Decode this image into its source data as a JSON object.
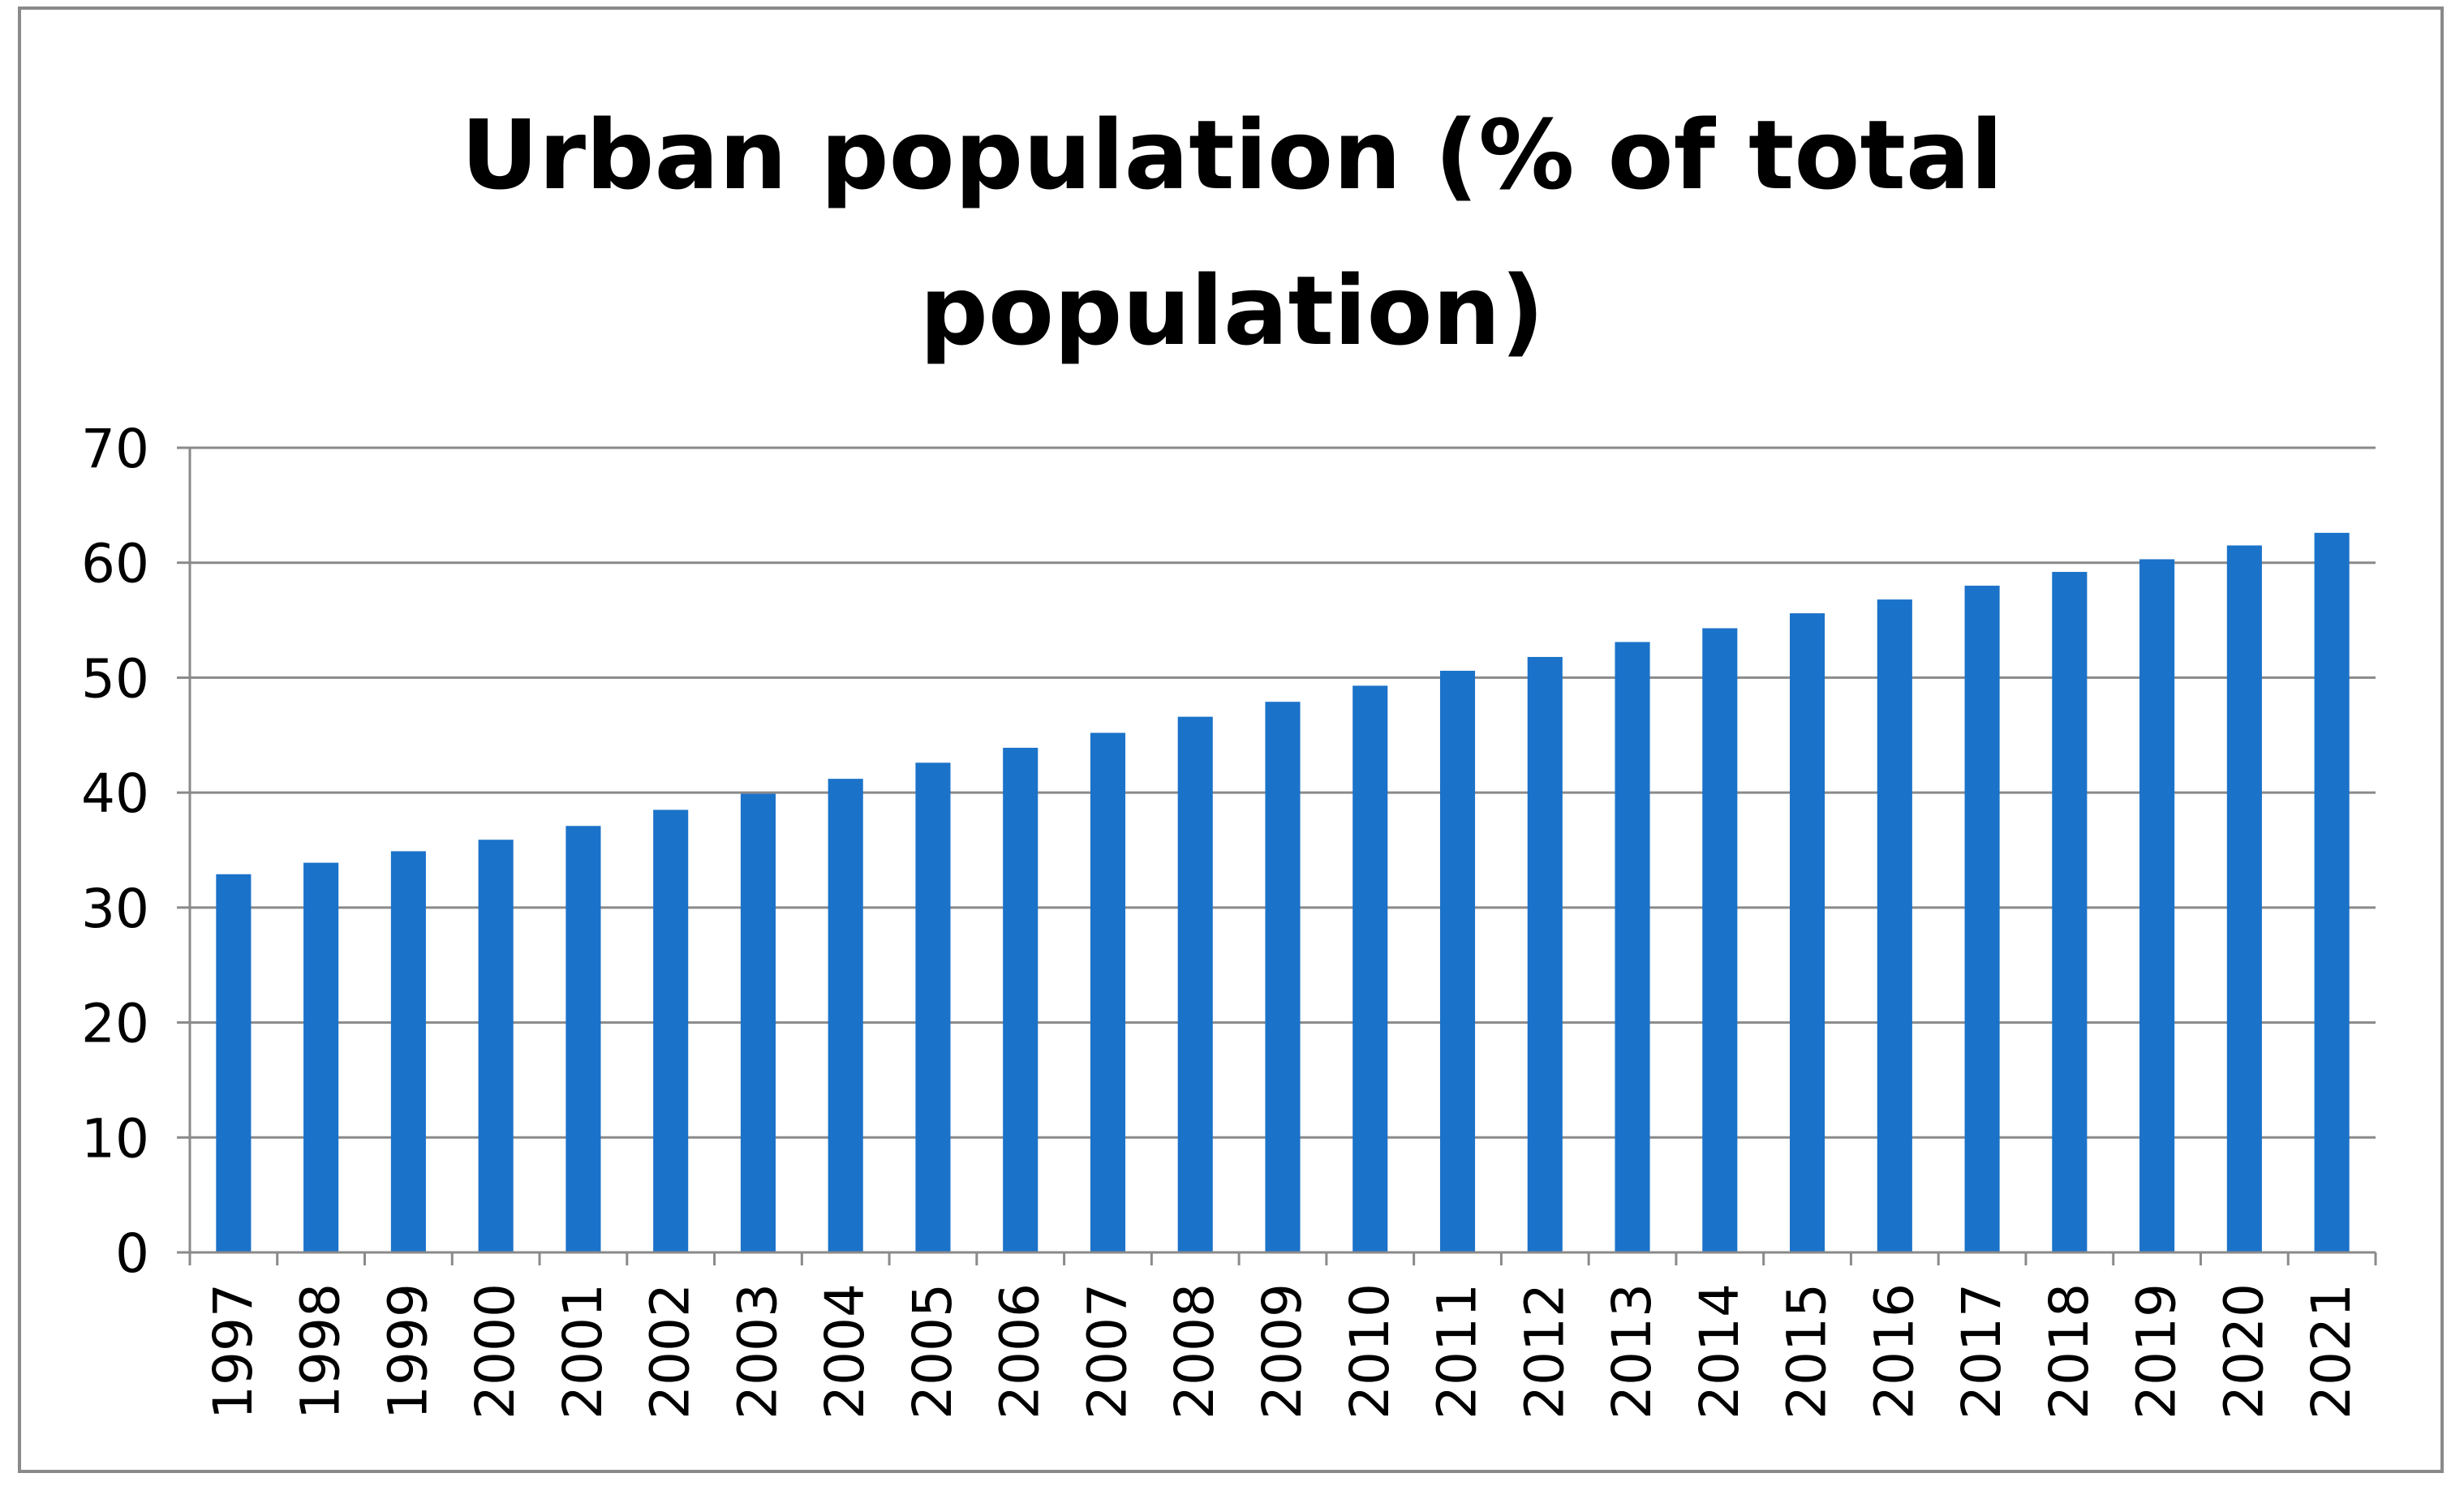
{
  "chart_data": {
    "type": "bar",
    "title": [
      "Urban population (% of total",
      "population)"
    ],
    "categories": [
      "1997",
      "1998",
      "1999",
      "2000",
      "2001",
      "2002",
      "2003",
      "2004",
      "2005",
      "2006",
      "2007",
      "2008",
      "2009",
      "2010",
      "2011",
      "2012",
      "2013",
      "2014",
      "2015",
      "2016",
      "2017",
      "2018",
      "2019",
      "2020",
      "2021"
    ],
    "values": [
      32.9,
      33.9,
      34.9,
      35.9,
      37.1,
      38.5,
      39.9,
      41.2,
      42.6,
      43.9,
      45.2,
      46.6,
      47.9,
      49.3,
      50.6,
      51.8,
      53.1,
      54.3,
      55.6,
      56.8,
      58.0,
      59.2,
      60.3,
      61.5,
      62.6
    ],
    "ylim": [
      0,
      70
    ],
    "yticks": [
      0,
      10,
      20,
      30,
      40,
      50,
      60,
      70
    ],
    "xlabel": "",
    "ylabel": "",
    "grid": true,
    "legend": "none",
    "bar_color": "#1b72c9",
    "grid_color": "#8a8a8a"
  }
}
